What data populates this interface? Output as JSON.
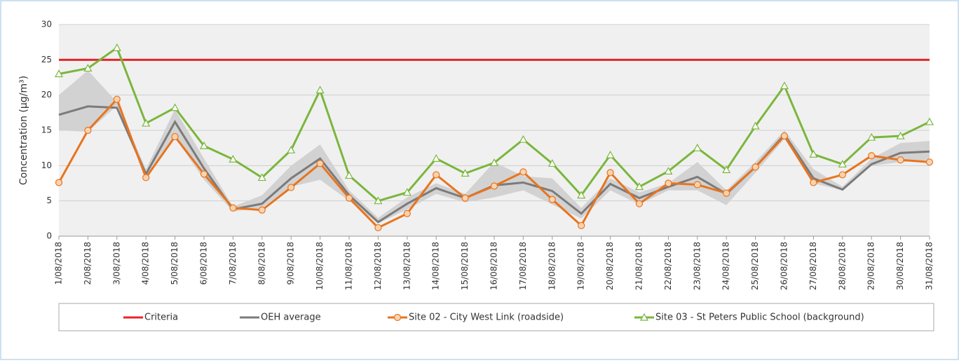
{
  "chart_data": {
    "type": "line",
    "y_label": "Concentration (µg/m³)",
    "categories": [
      "1/08/2018",
      "2/08/2018",
      "3/08/2018",
      "4/08/2018",
      "5/08/2018",
      "6/08/2018",
      "7/08/2018",
      "8/08/2018",
      "9/08/2018",
      "10/08/2018",
      "11/08/2018",
      "12/08/2018",
      "13/08/2018",
      "14/08/2018",
      "15/08/2018",
      "16/08/2018",
      "17/08/2018",
      "18/08/2018",
      "19/08/2018",
      "20/08/2018",
      "21/08/2018",
      "22/08/2018",
      "23/08/2018",
      "24/08/2018",
      "25/08/2018",
      "26/08/2018",
      "27/08/2018",
      "28/08/2018",
      "29/08/2018",
      "30/08/2018",
      "31/08/2018"
    ],
    "ylim": [
      0,
      30
    ],
    "yticks": [
      0,
      5,
      10,
      15,
      20,
      25,
      30
    ],
    "grid": true,
    "band": {
      "color": "#d2d2d2",
      "low": [
        15,
        14.8,
        18.5,
        8,
        14,
        8,
        3.5,
        4,
        7,
        8,
        5,
        1.8,
        3.8,
        6,
        4.8,
        5.5,
        6.5,
        4.5,
        2.5,
        6.5,
        4.5,
        6.5,
        6.5,
        4.4,
        9,
        13.8,
        7.5,
        6.5,
        10,
        10.5,
        10.8
      ],
      "high": [
        20,
        23.5,
        19,
        9.5,
        18,
        11,
        4.2,
        5.8,
        10,
        13,
        6.5,
        2.6,
        5.5,
        7.5,
        6,
        10.5,
        8.5,
        8.2,
        4,
        8.2,
        6.2,
        7.5,
        10.5,
        6.5,
        10.5,
        15,
        9.5,
        7,
        11,
        13.2,
        13.5
      ]
    },
    "series": [
      {
        "name": "Criteria",
        "color": "#e8242a",
        "marker": "none",
        "values": [
          25,
          25,
          25,
          25,
          25,
          25,
          25,
          25,
          25,
          25,
          25,
          25,
          25,
          25,
          25,
          25,
          25,
          25,
          25,
          25,
          25,
          25,
          25,
          25,
          25,
          25,
          25,
          25,
          25,
          25,
          25
        ]
      },
      {
        "name": "OEH average",
        "color": "#7b7b7b",
        "marker": "none",
        "values": [
          17.2,
          18.4,
          18.2,
          8.8,
          16.2,
          9.6,
          3.8,
          4.6,
          8.2,
          11.0,
          5.8,
          2.0,
          4.6,
          6.8,
          5.4,
          7.2,
          7.6,
          6.4,
          3.2,
          7.4,
          5.4,
          7.0,
          8.4,
          6.0,
          9.8,
          14.4,
          8.2,
          6.6,
          10.2,
          11.8,
          12.0
        ]
      },
      {
        "name": "Site 02 - City West Link (roadside)",
        "color": "#e8741e",
        "marker": "circle",
        "values": [
          7.6,
          15.0,
          19.4,
          8.3,
          14.1,
          8.8,
          4.0,
          3.7,
          6.9,
          10.3,
          5.4,
          1.2,
          3.2,
          8.7,
          5.4,
          7.1,
          9.1,
          5.2,
          1.5,
          9.0,
          4.6,
          7.5,
          7.3,
          6.1,
          9.8,
          14.2,
          7.6,
          8.7,
          11.4,
          10.8,
          10.5
        ]
      },
      {
        "name": "Site 03 - St Peters Public School (background)",
        "color": "#7ab63c",
        "marker": "triangle",
        "values": [
          23.0,
          23.8,
          26.7,
          16.0,
          18.2,
          12.8,
          10.9,
          8.3,
          12.2,
          20.7,
          8.6,
          5.0,
          6.2,
          11.0,
          8.9,
          10.4,
          13.7,
          10.3,
          5.8,
          11.5,
          7.0,
          9.2,
          12.5,
          9.4,
          15.6,
          21.3,
          11.6,
          10.2,
          14.0,
          14.2,
          16.2
        ]
      }
    ]
  }
}
